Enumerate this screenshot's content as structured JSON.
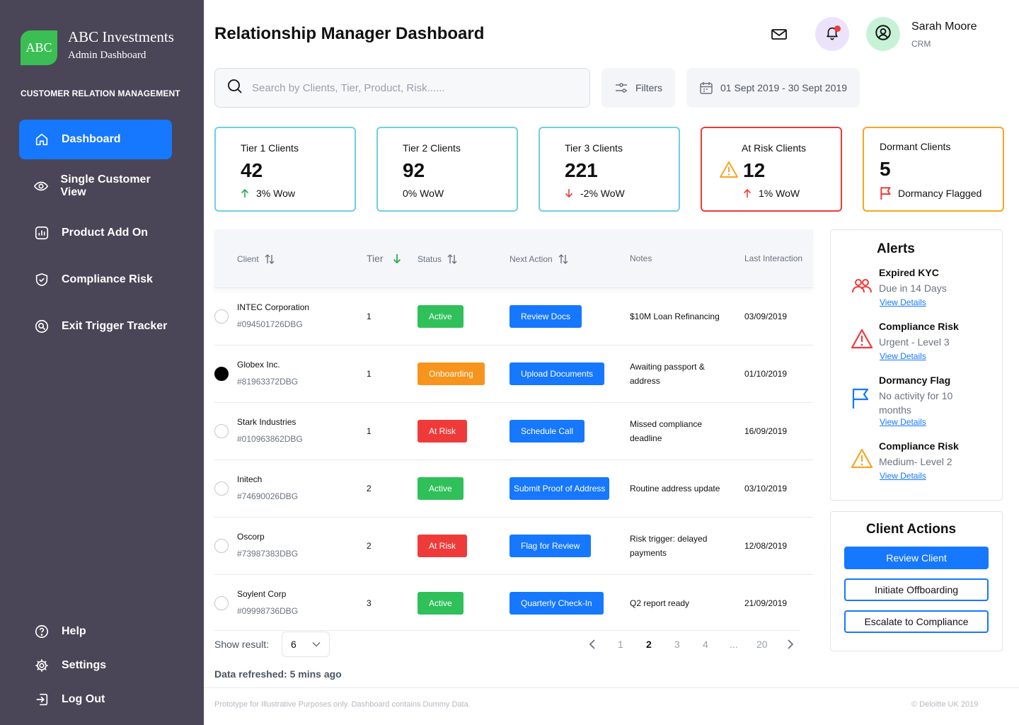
{
  "brand": {
    "logo_text": "ABC",
    "name": "ABC Investments",
    "subtitle": "Admin Dashboard",
    "section_label": "CUSTOMER RELATION MANAGEMENT"
  },
  "nav": {
    "items": [
      {
        "label": "Dashboard",
        "icon": "home-icon",
        "active": true
      },
      {
        "label": "Single Customer View",
        "icon": "eye-icon"
      },
      {
        "label": "Product Add On",
        "icon": "chart-icon"
      },
      {
        "label": "Compliance Risk",
        "icon": "shield-icon"
      },
      {
        "label": "Exit Trigger Tracker",
        "icon": "exit-trigger-icon"
      }
    ],
    "bottom": [
      {
        "label": "Help",
        "icon": "help-icon"
      },
      {
        "label": "Settings",
        "icon": "gear-icon"
      },
      {
        "label": "Log Out",
        "icon": "logout-icon"
      }
    ]
  },
  "header": {
    "title": "Relationship Manager Dashboard",
    "user_name": "Sarah Moore",
    "user_role": "CRM"
  },
  "search": {
    "placeholder": "Search by Clients, Tier, Product, Risk......",
    "filters_label": "Filters",
    "date_range": "01 Sept 2019 - 30 Sept 2019"
  },
  "kpis": [
    {
      "label": "Tier 1 Clients",
      "value": "42",
      "delta": "3% Wow",
      "trend": "up"
    },
    {
      "label": "Tier 2 Clients",
      "value": "92",
      "delta": "0% WoW",
      "trend": "flat"
    },
    {
      "label": "Tier 3 Clients",
      "value": "221",
      "delta": "-2% WoW",
      "trend": "down"
    },
    {
      "label": "At Risk Clients",
      "value": "12",
      "delta": "1% WoW",
      "trend": "up-red"
    },
    {
      "label": "Dormant Clients",
      "value": "5",
      "delta": "Dormancy Flagged",
      "trend": "flag"
    }
  ],
  "table": {
    "headers": {
      "client": "Client",
      "tier": "Tier",
      "status": "Status",
      "next_action": "Next Action",
      "notes": "Notes",
      "last_interaction": "Last Interaction"
    },
    "rows": [
      {
        "client": "INTEC Corporation",
        "id": "#094501726DBG",
        "tier": "1",
        "status": "Active",
        "status_color": "#2fc05a",
        "action": "Review Docs",
        "notes": "$10M Loan Refinancing",
        "date": "03/09/2019",
        "selected": false
      },
      {
        "client": "Globex Inc.",
        "id": "#81963372DBG",
        "tier": "1",
        "status": "Onboarding",
        "status_color": "#f7941d",
        "action": "Upload Documents",
        "notes": "Awaiting passport & address",
        "date": "01/10/2019",
        "selected": true
      },
      {
        "client": "Stark Industries",
        "id": "#010963862DBG",
        "tier": "1",
        "status": "At Risk",
        "status_color": "#ef3a3a",
        "action": "Schedule Call",
        "notes": "Missed compliance deadline",
        "date": "16/09/2019",
        "selected": false
      },
      {
        "client": "Initech",
        "id": "#74690026DBG",
        "tier": "2",
        "status": "Active",
        "status_color": "#2fc05a",
        "action": "Submit Proof of Address",
        "notes": "Routine address update",
        "date": "03/10/2019",
        "selected": false
      },
      {
        "client": "Oscorp",
        "id": "#73987383DBG",
        "tier": "2",
        "status": "At Risk",
        "status_color": "#ef3a3a",
        "action": "Flag for Review",
        "notes": "Risk trigger: delayed payments",
        "date": "12/08/2019",
        "selected": false
      },
      {
        "client": "Soylent Corp",
        "id": "#09998736DBG",
        "tier": "3",
        "status": "Active",
        "status_color": "#2fc05a",
        "action": "Quarterly Check-In",
        "notes": "Q2 report ready",
        "date": "21/09/2019",
        "selected": false
      }
    ]
  },
  "pagination": {
    "show_label": "Show result:",
    "page_size": "6",
    "pages": [
      "1",
      "2",
      "3",
      "4",
      "...",
      "20"
    ],
    "current": "2"
  },
  "refreshed": {
    "label": "Data refreshed:",
    "value": "5 mins ago"
  },
  "footer": {
    "left": "Prototype for Illustrative Purposes only. Dashboard contains Dummy Data.",
    "right": "© Deloitte UK 2019"
  },
  "alerts": {
    "title": "Alerts",
    "items": [
      {
        "title": "Expired KYC",
        "desc": "Due in 14 Days",
        "link": "View Details",
        "icon": "users-icon"
      },
      {
        "title": "Compliance Risk",
        "desc": "Urgent - Level 3",
        "link": "View Details",
        "icon": "warning-red-icon"
      },
      {
        "title": "Dormancy Flag",
        "desc": "No activity for 10 months",
        "link": "View Details",
        "icon": "flag-icon"
      },
      {
        "title": "Compliance Risk",
        "desc": "Medium- Level 2",
        "link": "View Details",
        "icon": "warning-orange-icon"
      }
    ]
  },
  "client_actions": {
    "title": "Client Actions",
    "review": "Review Client",
    "offboard": "Initiate Offboarding",
    "escalate": "Escalate to Compliance"
  },
  "colors": {
    "sidebar": "#4a4657",
    "accent": "#1677ff",
    "active": "#2fc05a",
    "onboarding": "#f7941d",
    "at_risk": "#ef3a3a",
    "tier_border": "#6fd0de",
    "dormant_border": "#f5a623"
  }
}
